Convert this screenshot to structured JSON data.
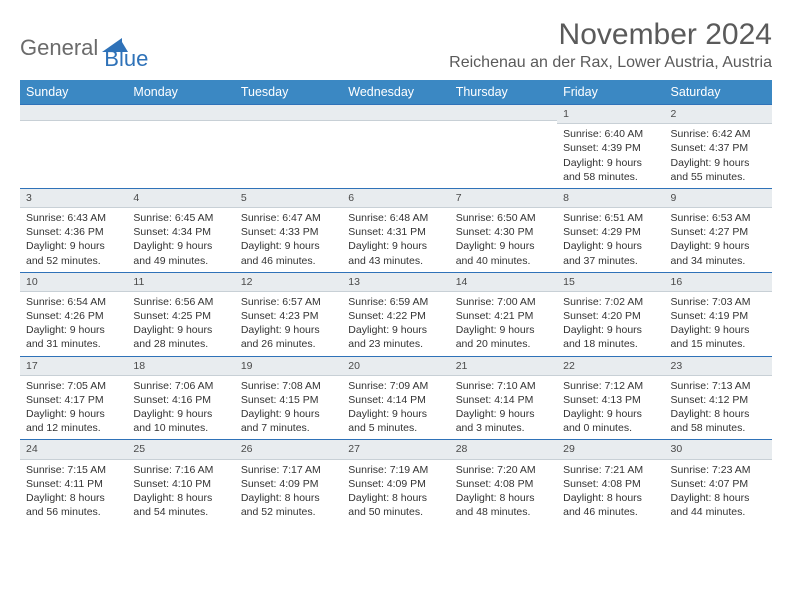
{
  "brand": {
    "part1": "General",
    "part2": "Blue"
  },
  "title": "November 2024",
  "location": "Reichenau an der Rax, Lower Austria, Austria",
  "colors": {
    "header_bg": "#3b88c3",
    "header_text": "#ffffff",
    "divider": "#2f72b8",
    "daybar_bg": "#e8ecef",
    "text": "#333333",
    "brand_gray": "#6b6b6b",
    "brand_blue": "#2f72b8"
  },
  "weekdays": [
    "Sunday",
    "Monday",
    "Tuesday",
    "Wednesday",
    "Thursday",
    "Friday",
    "Saturday"
  ],
  "weeks": [
    [
      null,
      null,
      null,
      null,
      null,
      {
        "n": "1",
        "sr": "Sunrise: 6:40 AM",
        "ss": "Sunset: 4:39 PM",
        "d1": "Daylight: 9 hours",
        "d2": "and 58 minutes."
      },
      {
        "n": "2",
        "sr": "Sunrise: 6:42 AM",
        "ss": "Sunset: 4:37 PM",
        "d1": "Daylight: 9 hours",
        "d2": "and 55 minutes."
      }
    ],
    [
      {
        "n": "3",
        "sr": "Sunrise: 6:43 AM",
        "ss": "Sunset: 4:36 PM",
        "d1": "Daylight: 9 hours",
        "d2": "and 52 minutes."
      },
      {
        "n": "4",
        "sr": "Sunrise: 6:45 AM",
        "ss": "Sunset: 4:34 PM",
        "d1": "Daylight: 9 hours",
        "d2": "and 49 minutes."
      },
      {
        "n": "5",
        "sr": "Sunrise: 6:47 AM",
        "ss": "Sunset: 4:33 PM",
        "d1": "Daylight: 9 hours",
        "d2": "and 46 minutes."
      },
      {
        "n": "6",
        "sr": "Sunrise: 6:48 AM",
        "ss": "Sunset: 4:31 PM",
        "d1": "Daylight: 9 hours",
        "d2": "and 43 minutes."
      },
      {
        "n": "7",
        "sr": "Sunrise: 6:50 AM",
        "ss": "Sunset: 4:30 PM",
        "d1": "Daylight: 9 hours",
        "d2": "and 40 minutes."
      },
      {
        "n": "8",
        "sr": "Sunrise: 6:51 AM",
        "ss": "Sunset: 4:29 PM",
        "d1": "Daylight: 9 hours",
        "d2": "and 37 minutes."
      },
      {
        "n": "9",
        "sr": "Sunrise: 6:53 AM",
        "ss": "Sunset: 4:27 PM",
        "d1": "Daylight: 9 hours",
        "d2": "and 34 minutes."
      }
    ],
    [
      {
        "n": "10",
        "sr": "Sunrise: 6:54 AM",
        "ss": "Sunset: 4:26 PM",
        "d1": "Daylight: 9 hours",
        "d2": "and 31 minutes."
      },
      {
        "n": "11",
        "sr": "Sunrise: 6:56 AM",
        "ss": "Sunset: 4:25 PM",
        "d1": "Daylight: 9 hours",
        "d2": "and 28 minutes."
      },
      {
        "n": "12",
        "sr": "Sunrise: 6:57 AM",
        "ss": "Sunset: 4:23 PM",
        "d1": "Daylight: 9 hours",
        "d2": "and 26 minutes."
      },
      {
        "n": "13",
        "sr": "Sunrise: 6:59 AM",
        "ss": "Sunset: 4:22 PM",
        "d1": "Daylight: 9 hours",
        "d2": "and 23 minutes."
      },
      {
        "n": "14",
        "sr": "Sunrise: 7:00 AM",
        "ss": "Sunset: 4:21 PM",
        "d1": "Daylight: 9 hours",
        "d2": "and 20 minutes."
      },
      {
        "n": "15",
        "sr": "Sunrise: 7:02 AM",
        "ss": "Sunset: 4:20 PM",
        "d1": "Daylight: 9 hours",
        "d2": "and 18 minutes."
      },
      {
        "n": "16",
        "sr": "Sunrise: 7:03 AM",
        "ss": "Sunset: 4:19 PM",
        "d1": "Daylight: 9 hours",
        "d2": "and 15 minutes."
      }
    ],
    [
      {
        "n": "17",
        "sr": "Sunrise: 7:05 AM",
        "ss": "Sunset: 4:17 PM",
        "d1": "Daylight: 9 hours",
        "d2": "and 12 minutes."
      },
      {
        "n": "18",
        "sr": "Sunrise: 7:06 AM",
        "ss": "Sunset: 4:16 PM",
        "d1": "Daylight: 9 hours",
        "d2": "and 10 minutes."
      },
      {
        "n": "19",
        "sr": "Sunrise: 7:08 AM",
        "ss": "Sunset: 4:15 PM",
        "d1": "Daylight: 9 hours",
        "d2": "and 7 minutes."
      },
      {
        "n": "20",
        "sr": "Sunrise: 7:09 AM",
        "ss": "Sunset: 4:14 PM",
        "d1": "Daylight: 9 hours",
        "d2": "and 5 minutes."
      },
      {
        "n": "21",
        "sr": "Sunrise: 7:10 AM",
        "ss": "Sunset: 4:14 PM",
        "d1": "Daylight: 9 hours",
        "d2": "and 3 minutes."
      },
      {
        "n": "22",
        "sr": "Sunrise: 7:12 AM",
        "ss": "Sunset: 4:13 PM",
        "d1": "Daylight: 9 hours",
        "d2": "and 0 minutes."
      },
      {
        "n": "23",
        "sr": "Sunrise: 7:13 AM",
        "ss": "Sunset: 4:12 PM",
        "d1": "Daylight: 8 hours",
        "d2": "and 58 minutes."
      }
    ],
    [
      {
        "n": "24",
        "sr": "Sunrise: 7:15 AM",
        "ss": "Sunset: 4:11 PM",
        "d1": "Daylight: 8 hours",
        "d2": "and 56 minutes."
      },
      {
        "n": "25",
        "sr": "Sunrise: 7:16 AM",
        "ss": "Sunset: 4:10 PM",
        "d1": "Daylight: 8 hours",
        "d2": "and 54 minutes."
      },
      {
        "n": "26",
        "sr": "Sunrise: 7:17 AM",
        "ss": "Sunset: 4:09 PM",
        "d1": "Daylight: 8 hours",
        "d2": "and 52 minutes."
      },
      {
        "n": "27",
        "sr": "Sunrise: 7:19 AM",
        "ss": "Sunset: 4:09 PM",
        "d1": "Daylight: 8 hours",
        "d2": "and 50 minutes."
      },
      {
        "n": "28",
        "sr": "Sunrise: 7:20 AM",
        "ss": "Sunset: 4:08 PM",
        "d1": "Daylight: 8 hours",
        "d2": "and 48 minutes."
      },
      {
        "n": "29",
        "sr": "Sunrise: 7:21 AM",
        "ss": "Sunset: 4:08 PM",
        "d1": "Daylight: 8 hours",
        "d2": "and 46 minutes."
      },
      {
        "n": "30",
        "sr": "Sunrise: 7:23 AM",
        "ss": "Sunset: 4:07 PM",
        "d1": "Daylight: 8 hours",
        "d2": "and 44 minutes."
      }
    ]
  ]
}
